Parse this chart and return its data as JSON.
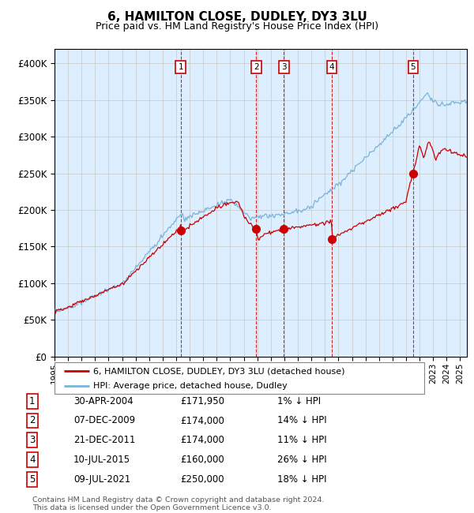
{
  "title": "6, HAMILTON CLOSE, DUDLEY, DY3 3LU",
  "subtitle": "Price paid vs. HM Land Registry's House Price Index (HPI)",
  "footer_line1": "Contains HM Land Registry data © Crown copyright and database right 2024.",
  "footer_line2": "This data is licensed under the Open Government Licence v3.0.",
  "legend_line1": "6, HAMILTON CLOSE, DUDLEY, DY3 3LU (detached house)",
  "legend_line2": "HPI: Average price, detached house, Dudley",
  "hpi_color": "#7ab4d8",
  "price_color": "#cc0000",
  "bg_color": "#ddeeff",
  "transactions": [
    {
      "num": 1,
      "date": "30-APR-2004",
      "price": 171950,
      "hpi_pct": "1% ↓ HPI",
      "year": 2004.33
    },
    {
      "num": 2,
      "date": "07-DEC-2009",
      "price": 174000,
      "hpi_pct": "14% ↓ HPI",
      "year": 2009.92
    },
    {
      "num": 3,
      "date": "21-DEC-2011",
      "price": 174000,
      "hpi_pct": "11% ↓ HPI",
      "year": 2011.97
    },
    {
      "num": 4,
      "date": "10-JUL-2015",
      "price": 160000,
      "hpi_pct": "26% ↓ HPI",
      "year": 2015.52
    },
    {
      "num": 5,
      "date": "09-JUL-2021",
      "price": 250000,
      "hpi_pct": "18% ↓ HPI",
      "year": 2021.52
    }
  ],
  "ylim": [
    0,
    420000
  ],
  "yticks": [
    0,
    50000,
    100000,
    150000,
    200000,
    250000,
    300000,
    350000,
    400000
  ],
  "xlim_start": 1995.0,
  "xlim_end": 2025.5
}
